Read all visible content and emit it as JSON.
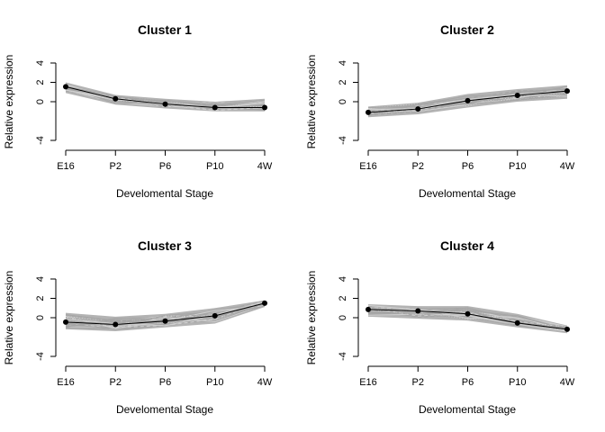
{
  "chart_data": [
    {
      "type": "line",
      "title": "Cluster 1",
      "xlabel": "Develomental Stage",
      "ylabel": "Relative expression",
      "categories": [
        "E16",
        "P2",
        "P6",
        "P10",
        "4W"
      ],
      "yticks": [
        4,
        2,
        0,
        -4
      ],
      "ylim": [
        -4,
        4
      ],
      "band": {
        "upper": [
          2.0,
          0.7,
          0.3,
          0.0,
          0.3
        ],
        "lower": [
          0.9,
          -0.3,
          -0.7,
          -1.0,
          -1.0
        ]
      },
      "series": [
        {
          "values": [
            1.55,
            0.3,
            -0.25,
            -0.6,
            -0.6
          ]
        }
      ]
    },
    {
      "type": "line",
      "title": "Cluster 2",
      "xlabel": "Develomental Stage",
      "ylabel": "Relative expression",
      "categories": [
        "E16",
        "P2",
        "P6",
        "P10",
        "4W"
      ],
      "yticks": [
        4,
        2,
        0,
        -4
      ],
      "ylim": [
        -4,
        4
      ],
      "band": {
        "upper": [
          -0.5,
          -0.1,
          0.8,
          1.3,
          1.7
        ],
        "lower": [
          -1.6,
          -1.3,
          -0.6,
          0.0,
          0.3
        ]
      },
      "series": [
        {
          "values": [
            -1.1,
            -0.75,
            0.1,
            0.65,
            1.1
          ]
        }
      ]
    },
    {
      "type": "line",
      "title": "Cluster 3",
      "xlabel": "Develomental Stage",
      "ylabel": "Relative expression",
      "categories": [
        "E16",
        "P2",
        "P6",
        "P10",
        "4W"
      ],
      "yticks": [
        4,
        2,
        0,
        -4
      ],
      "ylim": [
        -4,
        4
      ],
      "band": {
        "upper": [
          0.5,
          0.1,
          0.4,
          1.0,
          1.8
        ],
        "lower": [
          -1.2,
          -1.4,
          -1.0,
          -0.6,
          1.1
        ]
      },
      "series": [
        {
          "values": [
            -0.45,
            -0.7,
            -0.35,
            0.2,
            1.5
          ]
        }
      ]
    },
    {
      "type": "line",
      "title": "Cluster 4",
      "xlabel": "Develomental Stage",
      "ylabel": "Relative expression",
      "categories": [
        "E16",
        "P2",
        "P6",
        "P10",
        "4W"
      ],
      "yticks": [
        4,
        2,
        0,
        -4
      ],
      "ylim": [
        -4,
        4
      ],
      "band": {
        "upper": [
          1.4,
          1.2,
          1.2,
          0.4,
          -0.8
        ],
        "lower": [
          0.1,
          -0.1,
          -0.3,
          -1.0,
          -1.6
        ]
      },
      "series": [
        {
          "values": [
            0.85,
            0.7,
            0.4,
            -0.55,
            -1.2
          ]
        }
      ]
    }
  ]
}
